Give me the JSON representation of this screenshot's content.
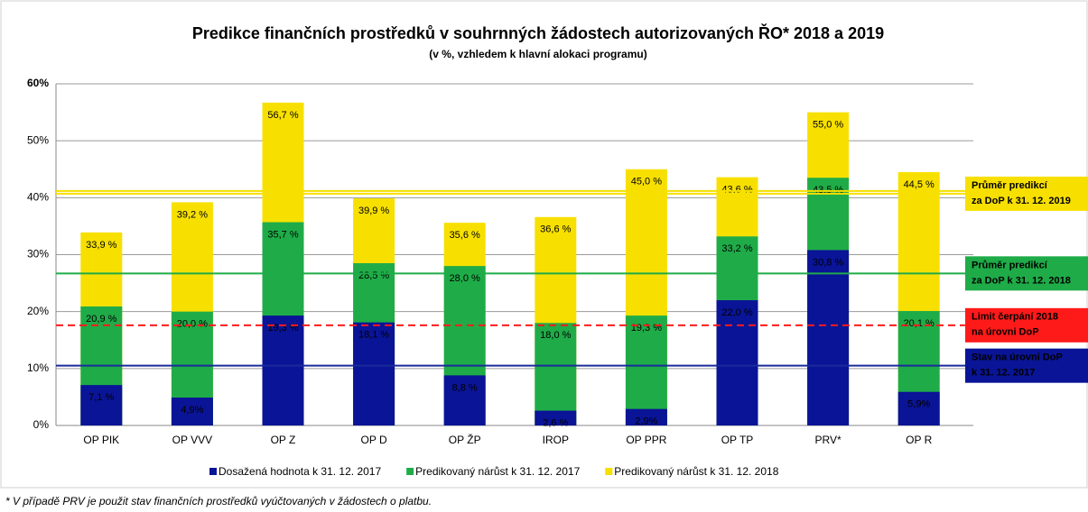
{
  "chart_data": {
    "type": "bar",
    "title": "Predikce finančních prostředků v souhrnných žádostech autorizovaných ŘO* 2018 a 2019",
    "subtitle": "(v %, vzhledem k hlavní alokaci programu)",
    "categories": [
      "OP PIK",
      "OP VVV",
      "OP Z",
      "OP D",
      "OP ŽP",
      "IROP",
      "OP PPR",
      "OP TP",
      "PRV*",
      "OP R"
    ],
    "series": [
      {
        "name": "Predikovaný nárůst k 31. 12. 2018",
        "color": "#f7e000",
        "label_color": "#000000",
        "values": [
          33.9,
          39.2,
          56.7,
          39.9,
          35.6,
          36.6,
          45.0,
          43.6,
          55.0,
          44.5
        ],
        "value_labels": [
          "33,9 %",
          "39,2 %",
          "56,7 %",
          "39,9 %",
          "35,6 %",
          "36,6 %",
          "45,0 %",
          "43,6 %",
          "55,0 %",
          "44,5 %"
        ]
      },
      {
        "name": "Predikovaný nárůst k 31. 12. 2017",
        "color": "#1fac48",
        "label_color": "#0a1a6e",
        "values": [
          20.9,
          20.0,
          35.7,
          28.5,
          28.0,
          18.0,
          19.3,
          33.2,
          43.5,
          20.1
        ],
        "value_labels": [
          "20,9 %",
          "20,0 %",
          "35,7 %",
          "28,5 %",
          "28,0 %",
          "18,0 %",
          "19,3 %",
          "33,2 %",
          "43,5 %",
          "20,1 %"
        ]
      },
      {
        "name": "Dosažená hodnota k 31. 12. 2017",
        "color": "#0a1496",
        "label_color": "#ffffff",
        "values": [
          7.1,
          4.9,
          19.3,
          18.1,
          8.8,
          2.6,
          2.9,
          22.0,
          30.8,
          5.9
        ],
        "value_labels": [
          "7,1 %",
          "4,9%",
          "19,3 %",
          "18,1 %",
          "8,8 %",
          "2,6 %",
          "2,9%",
          "22,0 %",
          "30,8 %",
          "5,9%"
        ]
      }
    ],
    "legend_order": [
      2,
      1,
      0
    ],
    "ylim": [
      0,
      60
    ],
    "yticks": [
      {
        "value": 0,
        "label": "0%"
      },
      {
        "value": 10,
        "label": "10%"
      },
      {
        "value": 20,
        "label": "20%"
      },
      {
        "value": 30,
        "label": "30%"
      },
      {
        "value": 40,
        "label": "40%"
      },
      {
        "value": 50,
        "label": "50%"
      },
      {
        "value": 60,
        "label": "60%"
      }
    ],
    "ytick_top_color": "#e00000",
    "grid": true,
    "reference_lines": [
      {
        "value": 40.7,
        "color": "#f7e000",
        "dash": false,
        "box_color": "#f7e000",
        "text_color": "#000000",
        "label_lines": [
          "Průměr predikcí",
          "za DoP k 31. 12. 2019"
        ]
      },
      {
        "value": 26.7,
        "color": "#1fac48",
        "dash": false,
        "box_color": "#1fac48",
        "text_color": "#0a1a6e",
        "label_lines": [
          "Průměr predikcí",
          "za DoP k 31. 12. 2018"
        ]
      },
      {
        "value": 17.6,
        "color": "#ff1a1a",
        "dash": true,
        "box_color": "#ff1a1a",
        "text_color": "#0a1a6e",
        "label_lines": [
          "Limit čerpání 2018",
          "na úrovni DoP"
        ]
      },
      {
        "value": 10.5,
        "color": "#1a2a9a",
        "dash": false,
        "box_color": "#0a1496",
        "text_color": "#ffffff",
        "label_lines": [
          "Stav na úrovni DoP",
          "k 31. 12. 2017"
        ]
      }
    ],
    "footnote": "* V případě PRV je použit stav finančních prostředků vyúčtovaných v žádostech o platbu."
  }
}
